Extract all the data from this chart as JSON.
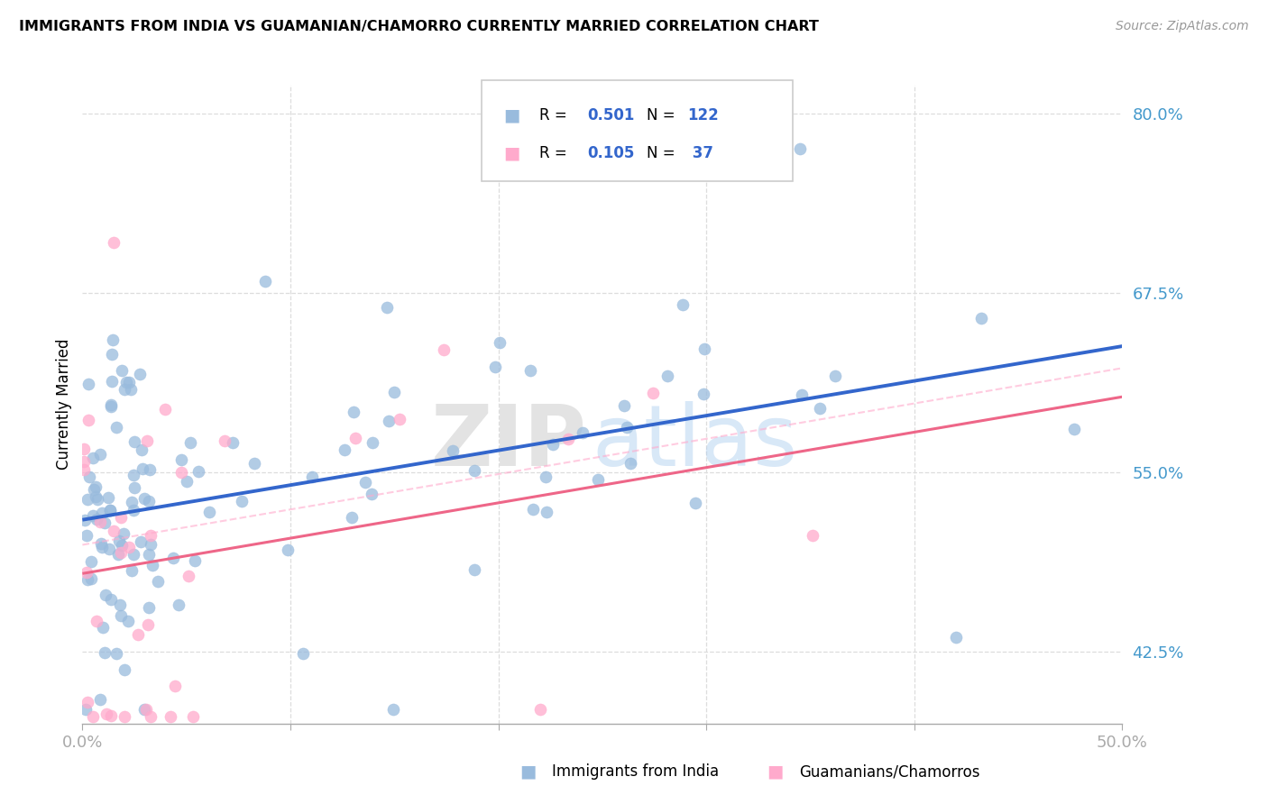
{
  "title": "IMMIGRANTS FROM INDIA VS GUAMANIAN/CHAMORRO CURRENTLY MARRIED CORRELATION CHART",
  "source": "Source: ZipAtlas.com",
  "ylabel": "Currently Married",
  "yticks": [
    42.5,
    55.0,
    67.5,
    80.0
  ],
  "ytick_labels": [
    "42.5%",
    "55.0%",
    "67.5%",
    "80.0%"
  ],
  "xmin": 0.0,
  "xmax": 50.0,
  "ymin": 37.5,
  "ymax": 82.0,
  "blue_R": 0.501,
  "blue_N": 122,
  "pink_R": 0.105,
  "pink_N": 37,
  "blue_color": "#99BBDD",
  "pink_color": "#FFAACC",
  "blue_line_color": "#3366CC",
  "pink_line_color": "#EE6688",
  "pink_dash_color": "#FFAACC",
  "watermark_zip": "ZIP",
  "watermark_atlas": "atlas",
  "legend_label_blue": "Immigrants from India",
  "legend_label_pink": "Guamanians/Chamorros",
  "blue_intercept": 51.0,
  "blue_slope": 0.34,
  "pink_intercept": 49.5,
  "pink_slope": 0.12
}
